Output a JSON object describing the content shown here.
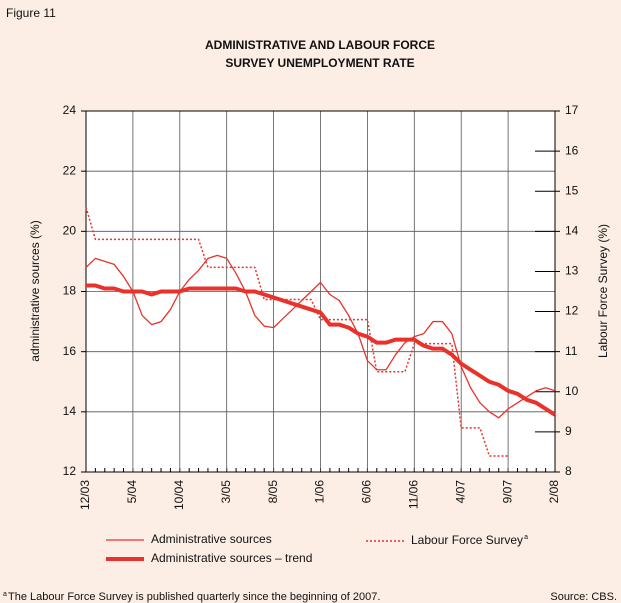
{
  "chart_data": {
    "type": "line",
    "figure_label": "Figure 11",
    "title": [
      "ADMINISTRATIVE AND LABOUR FORCE",
      "SURVEY UNEMPLOYMENT RATE"
    ],
    "y_label": "administrative sources (%)",
    "y2_label": "Labour Force Survey (%)",
    "categories": [
      "12/03",
      null,
      null,
      null,
      null,
      "5/04",
      null,
      null,
      null,
      null,
      "10/04",
      null,
      null,
      null,
      null,
      "3/05",
      null,
      null,
      null,
      null,
      "8/05",
      null,
      null,
      null,
      null,
      "1/06",
      null,
      null,
      null,
      null,
      "6/06",
      null,
      null,
      null,
      null,
      "11/06",
      null,
      null,
      null,
      null,
      "4/07",
      null,
      null,
      null,
      null,
      "9/07",
      null,
      null,
      null,
      null,
      "2/08"
    ],
    "ylim": [
      12,
      24
    ],
    "yticks": [
      12,
      14,
      16,
      18,
      20,
      22,
      24
    ],
    "y2lim": [
      8,
      17
    ],
    "y2ticks": [
      8,
      9,
      10,
      11,
      12,
      13,
      14,
      15,
      16,
      17
    ],
    "grid": true,
    "series": [
      {
        "name": "Administrative sources",
        "color": "#e8322b",
        "style": "thin",
        "values": [
          18.8,
          19.1,
          19.0,
          18.9,
          18.5,
          18.0,
          17.2,
          16.9,
          17.0,
          17.4,
          18.0,
          18.4,
          18.7,
          19.1,
          19.2,
          19.1,
          18.6,
          18.0,
          17.2,
          16.85,
          16.8,
          17.1,
          17.4,
          17.7,
          18.0,
          18.3,
          17.9,
          17.7,
          17.2,
          16.6,
          15.7,
          15.4,
          15.4,
          15.9,
          16.3,
          16.5,
          16.6,
          17.0,
          17.0,
          16.6,
          15.5,
          14.8,
          14.3,
          14.0,
          13.8,
          14.1,
          14.3,
          14.5,
          14.7,
          14.8,
          14.7
        ]
      },
      {
        "name": "Administrative sources – trend",
        "color": "#e8322b",
        "style": "thick",
        "values": [
          18.2,
          18.2,
          18.1,
          18.1,
          18.0,
          18.0,
          18.0,
          17.9,
          18.0,
          18.0,
          18.0,
          18.1,
          18.1,
          18.1,
          18.1,
          18.1,
          18.1,
          18.0,
          18.0,
          17.9,
          17.8,
          17.7,
          17.6,
          17.5,
          17.4,
          17.3,
          16.9,
          16.9,
          16.8,
          16.6,
          16.5,
          16.3,
          16.3,
          16.4,
          16.4,
          16.4,
          16.2,
          16.1,
          16.1,
          15.9,
          15.6,
          15.4,
          15.2,
          15.0,
          14.9,
          14.7,
          14.6,
          14.4,
          14.3,
          14.1,
          13.9
        ]
      },
      {
        "name": "Labour Force Survey",
        "color": "#e8322b",
        "style": "dotted",
        "axis": "y2",
        "values": [
          14.6,
          13.8,
          13.8,
          13.8,
          13.8,
          13.8,
          13.8,
          13.8,
          13.8,
          13.8,
          13.8,
          13.8,
          13.8,
          13.1,
          13.1,
          13.1,
          13.1,
          13.1,
          13.1,
          12.3,
          12.3,
          12.3,
          12.3,
          12.3,
          12.3,
          11.8,
          11.8,
          11.8,
          11.8,
          11.8,
          11.8,
          10.5,
          10.5,
          10.5,
          10.5,
          11.2,
          11.2,
          11.2,
          11.2,
          11.2,
          9.1,
          9.1,
          9.1,
          8.4,
          8.4,
          8.4,
          null,
          null,
          null,
          null,
          null
        ]
      }
    ],
    "footnote": {
      "marker": "a",
      "text": "The Labour Force Survey is published quarterly since the beginning of 2007."
    },
    "source": "Source: CBS."
  }
}
